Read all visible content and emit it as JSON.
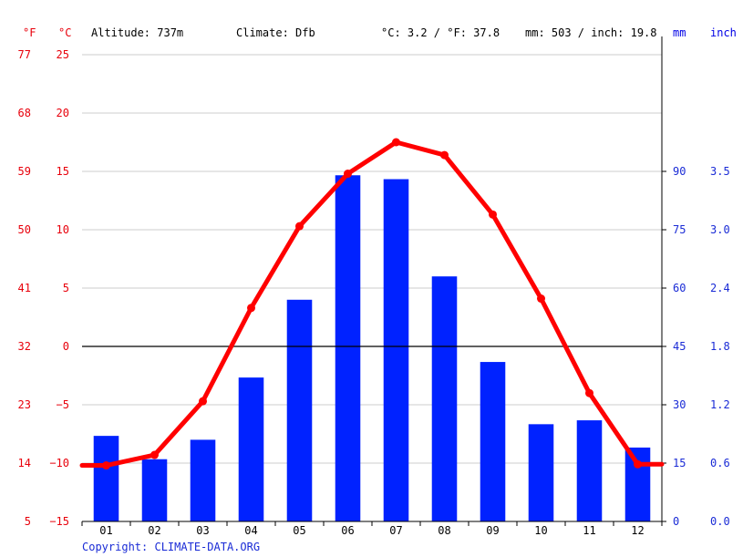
{
  "header": {
    "unit_f": "°F",
    "unit_c": "°C",
    "altitude": "Altitude: 737m",
    "climate": "Climate: Dfb",
    "temp_avg": "°C: 3.2 / °F: 37.8",
    "precip_total": "mm: 503 / inch: 19.8",
    "unit_mm": "mm",
    "unit_inch": "inch"
  },
  "copyright": "Copyright: CLIMATE-DATA.ORG",
  "colors": {
    "temperature": "#ff0000",
    "precipitation": "#0022ff",
    "grid": "#cccccc",
    "zero_line": "#000000"
  },
  "chart_data": {
    "type": "bar",
    "categories": [
      "01",
      "02",
      "03",
      "04",
      "05",
      "06",
      "07",
      "08",
      "09",
      "10",
      "11",
      "12"
    ],
    "series": [
      {
        "type": "bar",
        "unit": "mm",
        "values": [
          22,
          16,
          21,
          37,
          57,
          89,
          88,
          63,
          41,
          25,
          26,
          19
        ]
      },
      {
        "type": "line",
        "unit": "°C",
        "values": [
          -10.2,
          -9.3,
          -4.7,
          3.3,
          10.3,
          14.8,
          17.5,
          16.4,
          11.3,
          4.1,
          -4.0,
          -10.1
        ]
      }
    ],
    "y_left": {
      "ticks_c": [
        "25",
        "20",
        "15",
        "10",
        "5",
        "0",
        "−5",
        "−10",
        "−15"
      ],
      "ticks_f": [
        "77",
        "68",
        "59",
        "50",
        "41",
        "32",
        "23",
        "14",
        "5"
      ],
      "ylim": [
        -15,
        25
      ]
    },
    "y_right": {
      "ticks_mm": [
        "90",
        "75",
        "60",
        "45",
        "30",
        "15",
        "0"
      ],
      "ticks_inch": [
        "3.5",
        "3.0",
        "2.4",
        "1.8",
        "1.2",
        "0.6",
        "0.0"
      ],
      "ylim": [
        0,
        90
      ]
    },
    "grid": true,
    "legend": "none"
  }
}
